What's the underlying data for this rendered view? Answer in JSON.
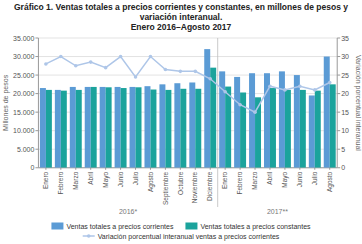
{
  "chart_data": {
    "type": "bar",
    "title": "Gráfico 1. Ventas totales a precios corrientes y constantes, en millones de pesos y variación interanual.",
    "subtitle": "Enero 2016–Agosto 2017",
    "ylabel": "Millones de pesos",
    "y2label": "Variación porcentual interanual",
    "categories": [
      "Enero",
      "Febrero",
      "Marzo",
      "Abril",
      "Mayo",
      "Junio",
      "Julio",
      "Agosto",
      "Septiembre",
      "Octubre",
      "Noviembre",
      "Diciembre",
      "Enero",
      "Febrero",
      "Marzo",
      "Abril",
      "Mayo",
      "Junio",
      "Julio",
      "Agosto"
    ],
    "annotations": [
      "2016*",
      "2017**"
    ],
    "series": [
      {
        "name": "Ventas totales a precios corrientes",
        "color": "#5b9bd5",
        "values": [
          21500,
          21000,
          21800,
          21800,
          21800,
          21800,
          21800,
          22000,
          22500,
          22800,
          23000,
          32000,
          26000,
          24500,
          25500,
          25500,
          26000,
          25000,
          19500,
          30000
        ]
      },
      {
        "name": "Ventas totales a precios constantes",
        "color": "#1ba39c",
        "values": [
          21000,
          20800,
          21000,
          21800,
          21700,
          21500,
          21700,
          21100,
          21000,
          21300,
          21300,
          27000,
          21900,
          20300,
          19000,
          21500,
          21000,
          21000,
          20800,
          22500
        ]
      },
      {
        "name": "Variación porcentual interanual ventas a precios corrientes",
        "color": "#aec6e8",
        "type": "line",
        "axis": "y2",
        "marker": "circle",
        "values": [
          28,
          30,
          27.5,
          28.5,
          27,
          30,
          24.5,
          30,
          26.5,
          26,
          26,
          24,
          20.5,
          17,
          15,
          22,
          21,
          22,
          21,
          23
        ]
      }
    ],
    "ylim": [
      0,
      35000
    ],
    "yticks": [
      0,
      {
        "value": 5000,
        "label": "5.000"
      },
      {
        "value": 10000,
        "label": "10.000"
      },
      {
        "value": 15000,
        "label": "15.000"
      },
      {
        "value": 20000,
        "label": "20.000"
      },
      {
        "value": 25000,
        "label": "25.000"
      },
      {
        "value": 30000,
        "label": "30.000"
      },
      {
        "value": 35000,
        "label": "35.000"
      }
    ],
    "y2lim": [
      0,
      35
    ],
    "y2ticks": [
      0,
      5,
      10,
      15,
      20,
      25,
      30,
      35
    ],
    "grid": true,
    "legend": "bottom"
  }
}
